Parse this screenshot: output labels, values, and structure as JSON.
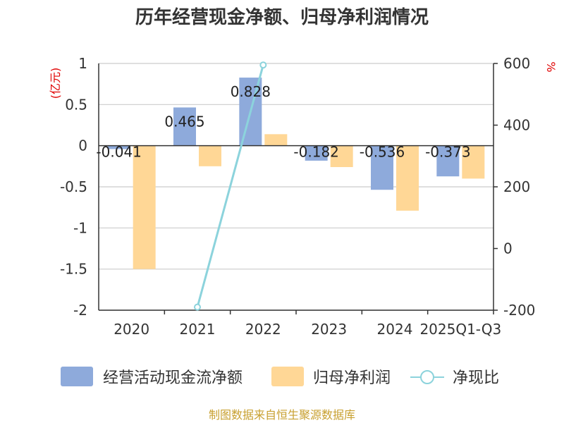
{
  "chart_data": {
    "type": "bar",
    "title": "历年经营现金净额、归母净利润情况",
    "categories": [
      "2020",
      "2021",
      "2022",
      "2023",
      "2024",
      "2025Q1-Q3"
    ],
    "series": [
      {
        "name": "经营活动现金流净额",
        "type": "bar",
        "axis": "left",
        "color": "#8eaadb",
        "values": [
          -0.041,
          0.465,
          0.828,
          -0.182,
          -0.536,
          -0.373
        ]
      },
      {
        "name": "归母净利润",
        "type": "bar",
        "axis": "left",
        "color": "#ffd796",
        "values": [
          -1.5,
          -0.25,
          0.14,
          -0.26,
          -0.79,
          -0.4
        ]
      },
      {
        "name": "净现比",
        "type": "line",
        "axis": "right",
        "color": "#8cd3dc",
        "values": [
          null,
          -190,
          595,
          null,
          null,
          null
        ]
      }
    ],
    "data_labels": [
      "-0.041",
      "0.465",
      "0.828",
      "-0.182",
      "-0.536",
      "-0.373"
    ],
    "left_axis": {
      "label": "(亿元)",
      "ylim": [
        -2,
        1
      ],
      "ticks": [
        1,
        0.5,
        0,
        -0.5,
        -1,
        -1.5,
        -2
      ],
      "tick_labels": [
        "1",
        "0.5",
        "0",
        "-0.5",
        "-1",
        "-1.5",
        "-2"
      ]
    },
    "right_axis": {
      "label": "%",
      "ylim": [
        -200,
        600
      ],
      "ticks": [
        600,
        400,
        200,
        0,
        -200
      ],
      "tick_labels": [
        "600",
        "400",
        "200",
        "0",
        "-200"
      ]
    },
    "source": "制图数据来自恒生聚源数据库"
  }
}
